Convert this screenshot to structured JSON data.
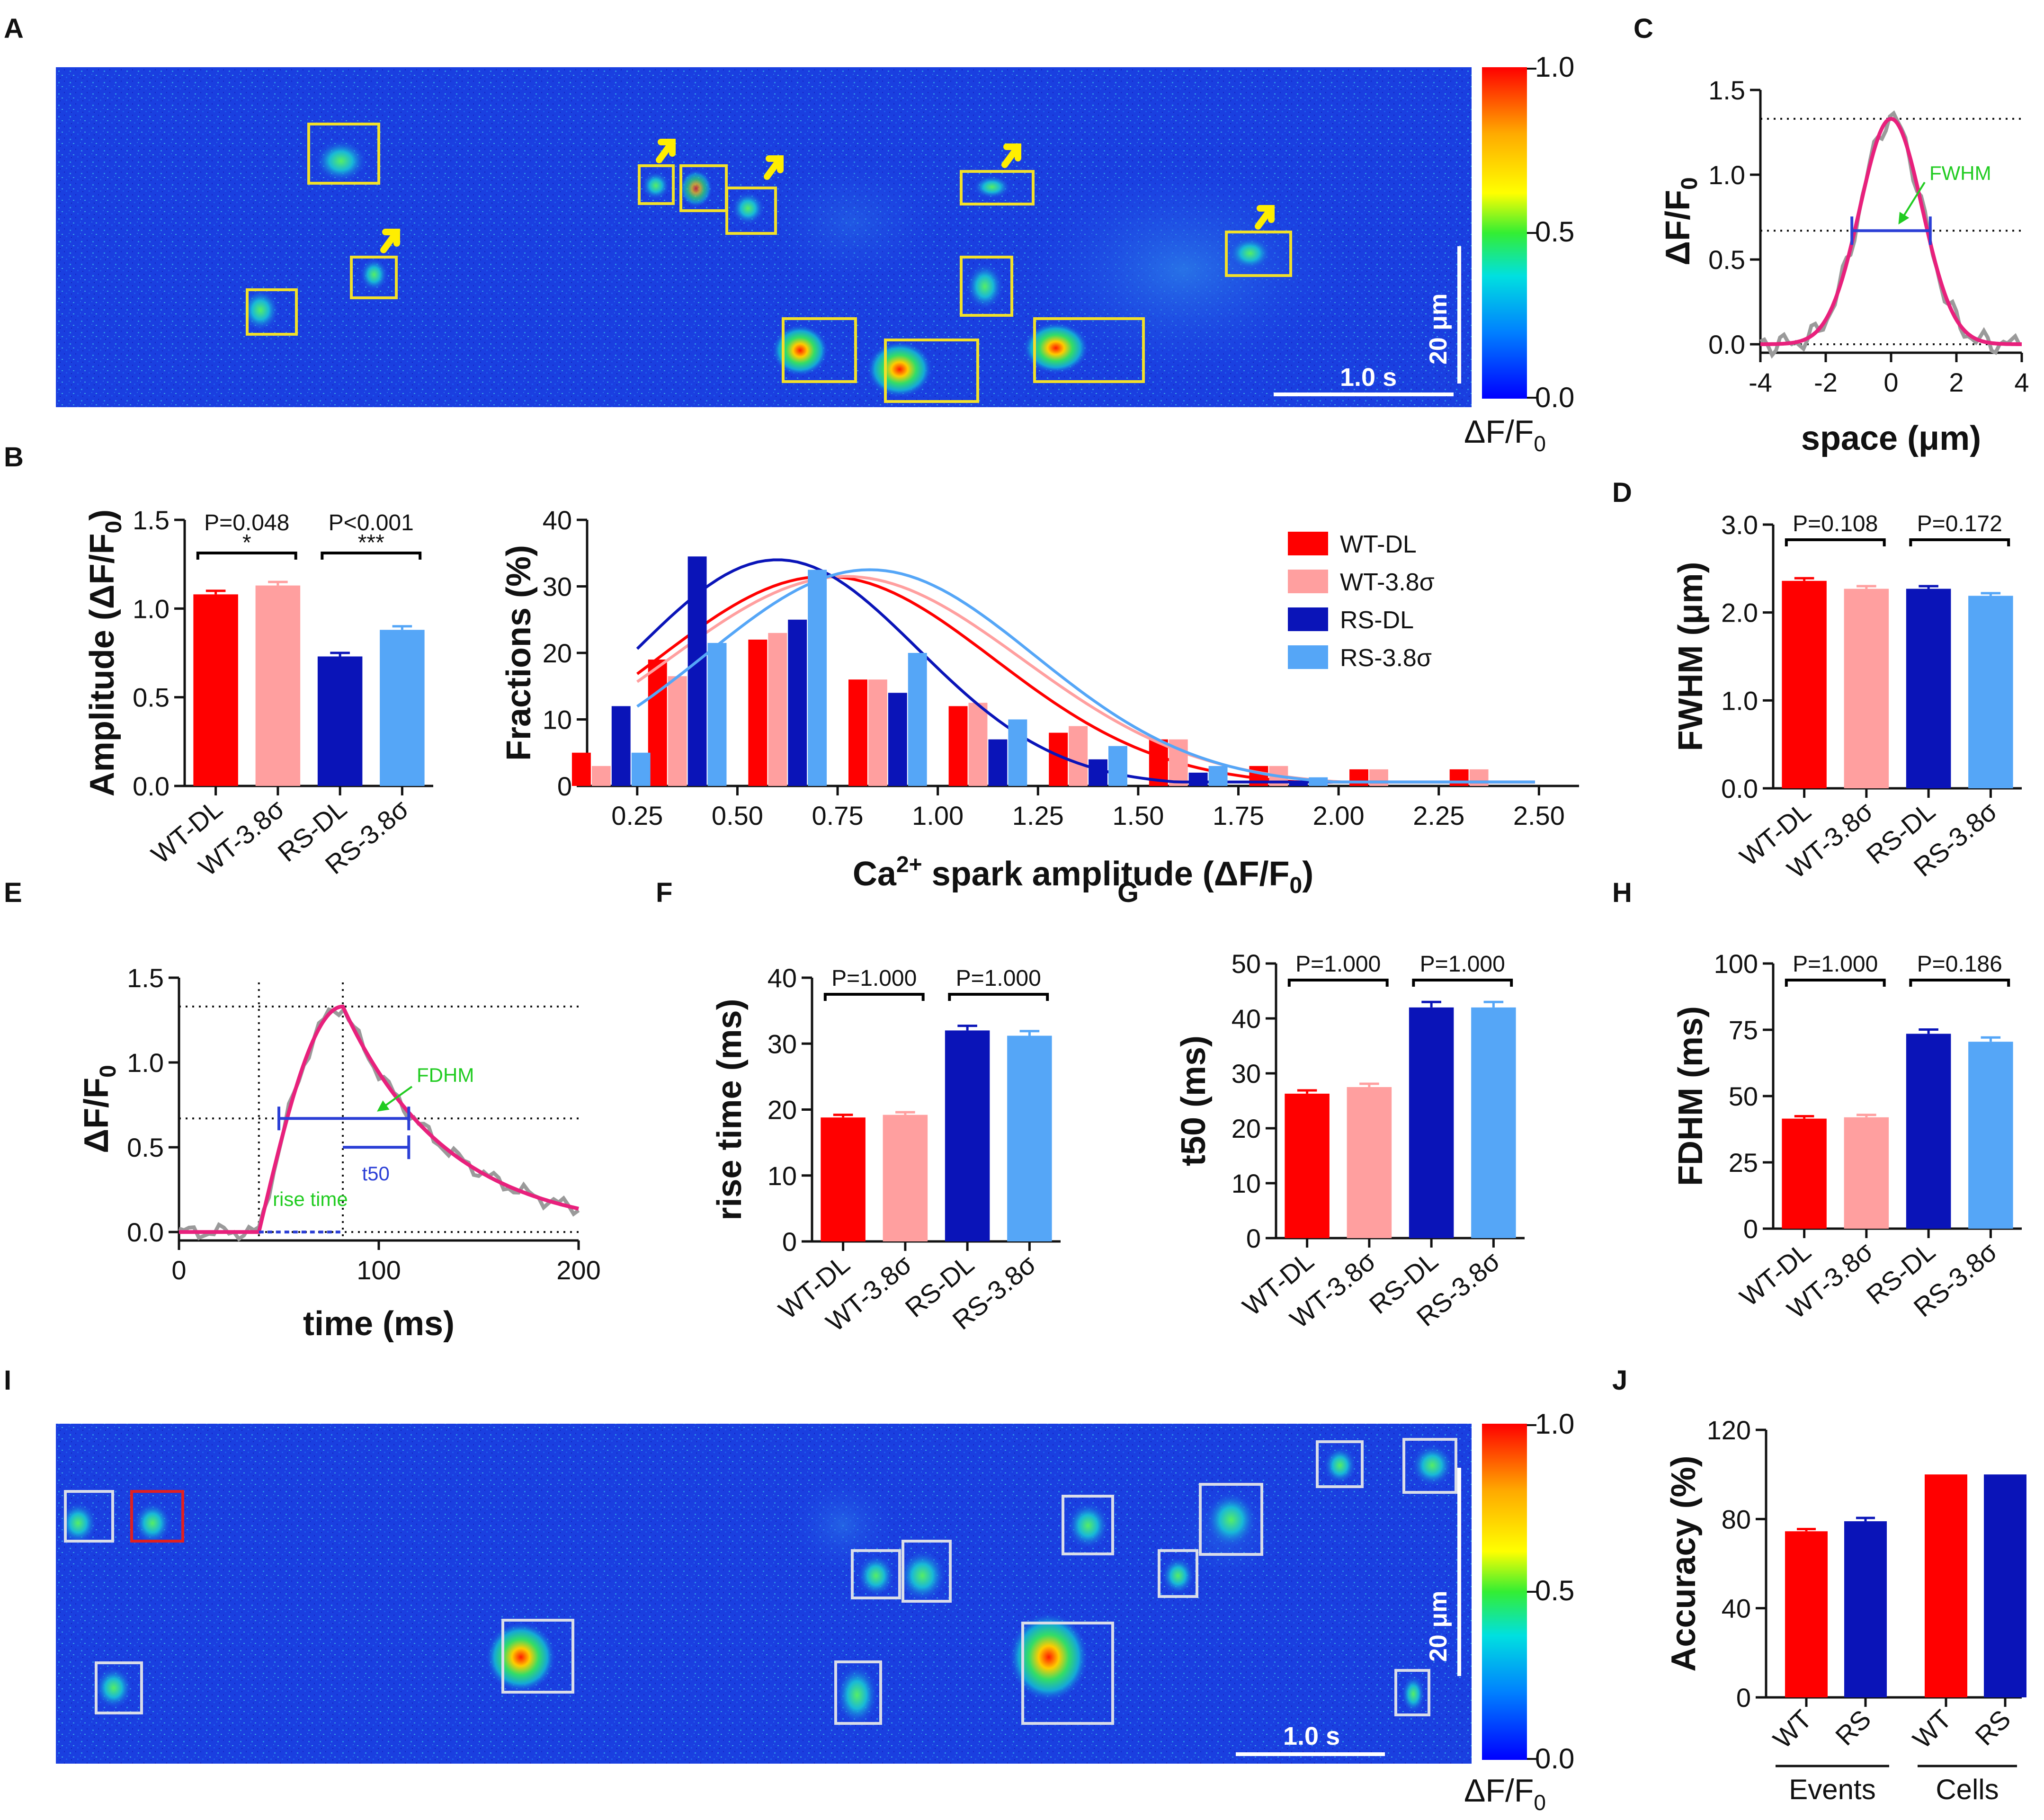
{
  "colors": {
    "wt_dl": "#ff0000",
    "wt_38": "#ff9f9f",
    "rs_dl": "#0a14b8",
    "rs_38": "#55a6f7",
    "fit": "#e8207c",
    "raw": "#9a9a9a",
    "bracket": "#000000",
    "box": "#f2e02a",
    "box_i": "#d9dde8",
    "arrow": "#ffee00",
    "blueline": "#2b3fd6",
    "green": "#22cc22"
  },
  "panels": {
    "A": "A",
    "B": "B",
    "C": "C",
    "D": "D",
    "E": "E",
    "F": "F",
    "G": "G",
    "H": "H",
    "I": "I",
    "J": "J"
  },
  "image_a": {
    "colorbar_ticks": [
      "1.0",
      "0.5",
      "0.0"
    ],
    "colorbar_label": "ΔF/F",
    "colorbar_sub": "0",
    "scale_time": "1.0 s",
    "scale_space": "20 μm"
  },
  "image_i": {
    "colorbar_ticks": [
      "1.0",
      "0.5",
      "0.0"
    ],
    "colorbar_label": "ΔF/F",
    "colorbar_sub": "0",
    "scale_time": "1.0 s",
    "scale_space": "20 μm"
  },
  "icons": {
    "colorbar": "colorbar-gradient",
    "arrow": "yellow-arrow-icon"
  },
  "chart_data": [
    {
      "id": "B-left",
      "type": "bar",
      "categories": [
        "WT-DL",
        "WT-3.8σ",
        "RS-DL",
        "RS-3.8σ"
      ],
      "values": [
        1.08,
        1.13,
        0.73,
        0.88
      ],
      "errors": [
        0.02,
        0.02,
        0.02,
        0.02
      ],
      "ylabel": "Amplitude (ΔF/F0)",
      "ylabel_main": "Amplitude (ΔF/F",
      "ylabel_sub": "0",
      "ylabel_end": ")",
      "ylim": [
        0,
        1.5
      ],
      "yticks": [
        "0.0",
        "0.5",
        "1.0",
        "1.5"
      ],
      "sig": [
        {
          "p": "P=0.048",
          "stars": "*"
        },
        {
          "p": "P<0.001",
          "stars": "***"
        }
      ]
    },
    {
      "id": "B-right",
      "type": "bar",
      "title": "",
      "xlabel": "Ca2+ spark amplitude (ΔF/F0)",
      "xlabel_a": "Ca",
      "xlabel_sup": "2+",
      "xlabel_b": " spark amplitude (ΔF/F",
      "xlabel_sub": "0",
      "xlabel_c": ")",
      "ylabel": "Fractions (%)",
      "ylim": [
        0,
        40
      ],
      "yticks": [
        "0",
        "10",
        "20",
        "30",
        "40"
      ],
      "xticks": [
        "0.25",
        "0.50",
        "0.75",
        "1.00",
        "1.25",
        "1.50",
        "1.75",
        "2.00",
        "2.25",
        "2.50"
      ],
      "xtick_values": [
        0.25,
        0.5,
        0.75,
        1.0,
        1.25,
        1.5,
        1.75,
        2.0,
        2.25,
        2.5
      ],
      "xlim": [
        0.125,
        2.6
      ],
      "bin_centers": [
        0.125,
        0.375,
        0.625,
        0.875,
        1.125,
        1.375,
        1.625,
        1.875,
        2.125,
        2.375
      ],
      "legend_position": "top-right",
      "series": [
        {
          "name": "WT-DL",
          "values": [
            5,
            19,
            22,
            16,
            12,
            8,
            7,
            3,
            2.5,
            2.5
          ],
          "fit": {
            "mu": 0.72,
            "sigma": 0.42,
            "amp": 31.5
          }
        },
        {
          "name": "WT-3.8σ",
          "values": [
            3,
            16.5,
            23,
            16,
            12.5,
            9,
            7,
            3,
            2.5,
            2.5
          ],
          "fit": {
            "mu": 0.77,
            "sigma": 0.44,
            "amp": 31.5
          }
        },
        {
          "name": "RS-DL",
          "values": [
            12,
            34.5,
            25,
            14,
            7,
            4,
            2,
            0.8,
            0,
            0
          ],
          "fit": {
            "mu": 0.6,
            "sigma": 0.35,
            "amp": 34
          }
        },
        {
          "name": "RS-3.8σ",
          "values": [
            5,
            21.5,
            32.5,
            20,
            10,
            6,
            3,
            1.3,
            0,
            0
          ],
          "fit": {
            "mu": 0.83,
            "sigma": 0.41,
            "amp": 32.5
          }
        }
      ]
    },
    {
      "id": "C",
      "type": "line",
      "xlabel": "space (μm)",
      "ylabel": "ΔF/F0",
      "ylabel_main": "ΔF/F",
      "ylabel_sub": "0",
      "xlim": [
        -4,
        4
      ],
      "ylim": [
        -0.05,
        1.5
      ],
      "xticks": [
        "-4",
        "-2",
        "0",
        "2",
        "4"
      ],
      "yticks": [
        "0.0",
        "0.5",
        "1.0",
        "1.5"
      ],
      "peak": 1.33,
      "half": 0.67,
      "fwhm_range": [
        -1.2,
        1.2
      ],
      "annotation": "FWHM",
      "fit": {
        "mu": 0,
        "sigma": 0.95,
        "amp": 1.33
      }
    },
    {
      "id": "D",
      "type": "bar",
      "categories": [
        "WT-DL",
        "WT-3.8σ",
        "RS-DL",
        "RS-3.8σ"
      ],
      "values": [
        2.36,
        2.27,
        2.27,
        2.19
      ],
      "errors": [
        0.03,
        0.03,
        0.03,
        0.03
      ],
      "ylabel": "FWHM (μm)",
      "ylim": [
        0,
        3
      ],
      "yticks": [
        "0.0",
        "1.0",
        "2.0",
        "3.0"
      ],
      "sig": [
        {
          "p": "P=0.108",
          "stars": ""
        },
        {
          "p": "P=0.172",
          "stars": ""
        }
      ]
    },
    {
      "id": "E",
      "type": "line",
      "xlabel": "time (ms)",
      "ylabel": "ΔF/F0",
      "ylabel_main": "ΔF/F",
      "ylabel_sub": "0",
      "xlim": [
        0,
        200
      ],
      "ylim": [
        -0.05,
        1.5
      ],
      "xticks": [
        "0",
        "100",
        "200"
      ],
      "yticks": [
        "0.0",
        "0.5",
        "1.0",
        "1.5"
      ],
      "onset": 40,
      "peak_time": 82,
      "peak": 1.33,
      "half": 0.67,
      "half_range": [
        50,
        115
      ],
      "annotations": {
        "fdhm": "FDHM",
        "t50": "t50",
        "rise": "rise time"
      }
    },
    {
      "id": "F",
      "type": "bar",
      "categories": [
        "WT-DL",
        "WT-3.8σ",
        "RS-DL",
        "RS-3.8σ"
      ],
      "values": [
        18.8,
        19.2,
        32,
        31.2
      ],
      "errors": [
        0.4,
        0.4,
        0.7,
        0.7
      ],
      "ylabel": "rise time (ms)",
      "ylim": [
        0,
        40
      ],
      "yticks": [
        "0",
        "10",
        "20",
        "30",
        "40"
      ],
      "sig": [
        {
          "p": "P=1.000",
          "stars": ""
        },
        {
          "p": "P=1.000",
          "stars": ""
        }
      ]
    },
    {
      "id": "G",
      "type": "bar",
      "categories": [
        "WT-DL",
        "WT-3.8σ",
        "RS-DL",
        "RS-3.8σ"
      ],
      "values": [
        26.3,
        27.5,
        42,
        42
      ],
      "errors": [
        0.6,
        0.6,
        1.0,
        1.0
      ],
      "ylabel": "t50 (ms)",
      "ylim": [
        0,
        50
      ],
      "yticks": [
        "0",
        "10",
        "20",
        "30",
        "40",
        "50"
      ],
      "sig": [
        {
          "p": "P=1.000",
          "stars": ""
        },
        {
          "p": "P=1.000",
          "stars": ""
        }
      ]
    },
    {
      "id": "H",
      "type": "bar",
      "categories": [
        "WT-DL",
        "WT-3.8σ",
        "RS-DL",
        "RS-3.8σ"
      ],
      "values": [
        41.5,
        42,
        73.5,
        70.5
      ],
      "errors": [
        0.9,
        0.9,
        1.6,
        1.6
      ],
      "ylabel": "FDHM (ms)",
      "ylim": [
        0,
        100
      ],
      "yticks": [
        "0",
        "25",
        "50",
        "75",
        "100"
      ],
      "sig": [
        {
          "p": "P=1.000",
          "stars": ""
        },
        {
          "p": "P=0.186",
          "stars": ""
        }
      ]
    },
    {
      "id": "J",
      "type": "bar",
      "categories": [
        "WT",
        "RS",
        "WT",
        "RS"
      ],
      "groups": [
        "Events",
        "Cells"
      ],
      "values": [
        74.5,
        79,
        100,
        100
      ],
      "errors": [
        1.0,
        1.5,
        0,
        0
      ],
      "ylabel": "Accuracy (%)",
      "ylim": [
        0,
        120
      ],
      "yticks": [
        "0",
        "40",
        "80",
        "120"
      ]
    }
  ]
}
